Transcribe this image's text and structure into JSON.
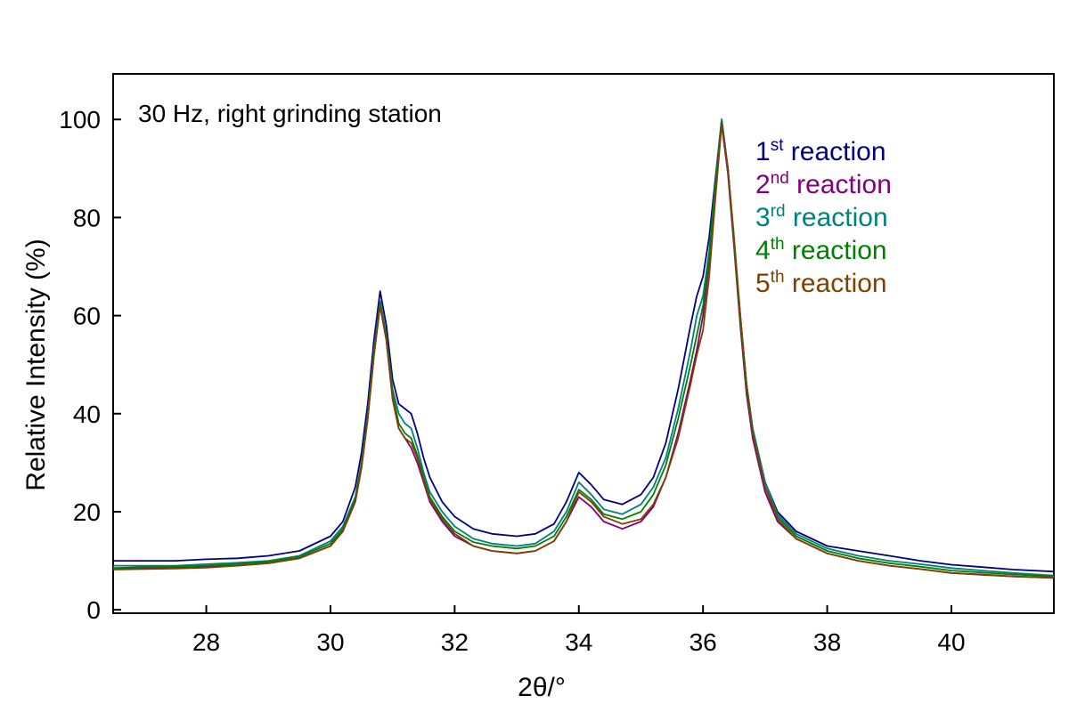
{
  "chart_data": {
    "type": "line",
    "annotation": "30 Hz, right grinding station",
    "xlabel": "2θ/°",
    "ylabel": "Relative Intensity (%)",
    "xlim": [
      26.5,
      41.65
    ],
    "ylim": [
      -0.7,
      109.3
    ],
    "xticks": [
      28,
      30,
      32,
      34,
      36,
      38,
      40
    ],
    "yticks": [
      0,
      20,
      40,
      60,
      80,
      100
    ],
    "legend": "upper right",
    "x": [
      26.5,
      27,
      27.5,
      28,
      28.5,
      29,
      29.5,
      30,
      30.2,
      30.4,
      30.5,
      30.6,
      30.7,
      30.8,
      30.9,
      31,
      31.1,
      31.2,
      31.3,
      31.4,
      31.5,
      31.6,
      31.8,
      32,
      32.3,
      32.6,
      33,
      33.3,
      33.6,
      33.8,
      34,
      34.2,
      34.4,
      34.7,
      35,
      35.2,
      35.4,
      35.6,
      35.8,
      35.9,
      36,
      36.1,
      36.2,
      36.3,
      36.4,
      36.5,
      36.6,
      36.7,
      36.8,
      37,
      37.2,
      37.5,
      38,
      38.5,
      39,
      39.5,
      40,
      40.5,
      41,
      41.65
    ],
    "series": [
      {
        "name": "1st reaction",
        "color": "#000080",
        "values": [
          10,
          10,
          10,
          10.3,
          10.5,
          11,
          12,
          15,
          18,
          25,
          32,
          42,
          55,
          65,
          58,
          47,
          42,
          41,
          40,
          36,
          31,
          27,
          22,
          19,
          16.5,
          15.5,
          15,
          15.5,
          17.5,
          22,
          28,
          25.5,
          22.5,
          21.5,
          23.5,
          27,
          34,
          45,
          58,
          64,
          68,
          76,
          88,
          100,
          90,
          75,
          60,
          46,
          37,
          26,
          20,
          16,
          13,
          12,
          11,
          10,
          9.2,
          8.7,
          8.2,
          7.8
        ]
      },
      {
        "name": "2nd reaction",
        "color": "#800080",
        "values": [
          8.5,
          8.5,
          8.6,
          8.8,
          9,
          9.5,
          10.5,
          13,
          16,
          22,
          29,
          39,
          52,
          62,
          55,
          43,
          37,
          35,
          33,
          30,
          26,
          22,
          18,
          15,
          13,
          12,
          11.5,
          12,
          14,
          18,
          23,
          21,
          18,
          16.5,
          18,
          21,
          27,
          36,
          47,
          53,
          60,
          71,
          86,
          99,
          89,
          74,
          58,
          44,
          35,
          24,
          18,
          14.5,
          11.5,
          10,
          9,
          8.3,
          7.5,
          7.2,
          6.8,
          6.5
        ]
      },
      {
        "name": "3rd reaction",
        "color": "#008080",
        "values": [
          9,
          9,
          9,
          9.3,
          9.6,
          10,
          11,
          14,
          17,
          23,
          30,
          40,
          53,
          63,
          56,
          45,
          40,
          38,
          37,
          33,
          28,
          24,
          20,
          17,
          14.5,
          13.5,
          13,
          13.5,
          16,
          20,
          26,
          23.5,
          20.5,
          19.5,
          21.5,
          25,
          31,
          41,
          53,
          60,
          64,
          73,
          87,
          100,
          90,
          75,
          60,
          46,
          37,
          26,
          19.5,
          15.5,
          12.5,
          11,
          10,
          9.3,
          8.5,
          8,
          7.5,
          7
        ]
      },
      {
        "name": "4th reaction",
        "color": "#008000",
        "values": [
          8.5,
          8.7,
          8.8,
          9,
          9.3,
          9.8,
          10.8,
          13.5,
          16.5,
          22.5,
          29.5,
          39.5,
          52,
          62.5,
          55.5,
          44,
          38,
          36,
          35,
          31.5,
          27,
          23,
          19,
          16,
          13.8,
          13,
          12.5,
          13,
          15,
          19,
          24.5,
          22.5,
          19.5,
          18.5,
          20,
          23.5,
          29.5,
          39,
          50,
          56,
          62,
          72,
          86,
          99.5,
          90,
          75,
          59,
          45,
          36,
          25,
          19,
          15,
          12,
          10.5,
          9.5,
          8.8,
          8,
          7.6,
          7.2,
          6.8
        ]
      },
      {
        "name": "5th reaction",
        "color": "#804000",
        "values": [
          8.2,
          8.3,
          8.4,
          8.6,
          9,
          9.5,
          10.5,
          13,
          16,
          22,
          29,
          39,
          52,
          62,
          55,
          43,
          37,
          35,
          34,
          31,
          26.5,
          22.5,
          18.5,
          15.5,
          13,
          12,
          11.5,
          12,
          14,
          18,
          24,
          22,
          19,
          17.5,
          18.5,
          21.5,
          27,
          35,
          46,
          52,
          57,
          68,
          84,
          99,
          90,
          76,
          60,
          46,
          36,
          25,
          18.5,
          14.5,
          11.5,
          10,
          9,
          8.3,
          7.5,
          7.1,
          6.8,
          6.5
        ]
      }
    ]
  }
}
